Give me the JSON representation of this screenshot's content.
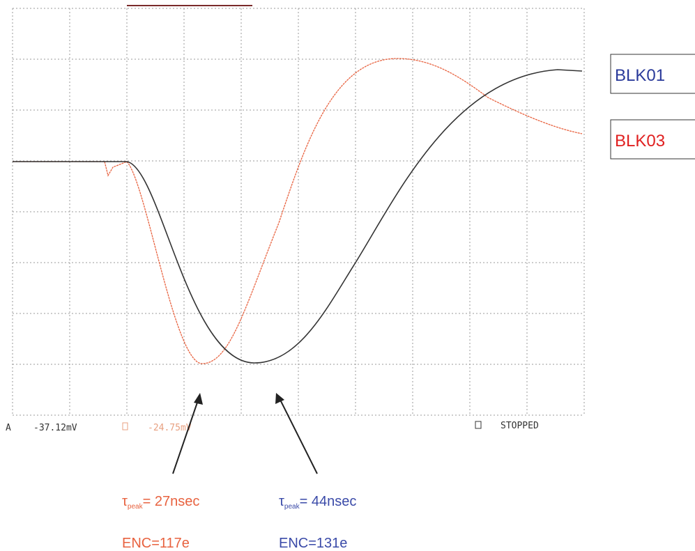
{
  "scope": {
    "status": {
      "channel_a": "A",
      "reading_a": "-37.12mV",
      "reading_b": "-24.75mV",
      "state": "STOPPED"
    },
    "legend": [
      "BLK01",
      "BLK03"
    ],
    "annotations": [
      {
        "symbol": "τ",
        "subscript": "peak",
        "text": "= 27nsec",
        "enc": "ENC=117e"
      },
      {
        "symbol": "τ",
        "subscript": "peak",
        "text": "= 44nsec",
        "enc": "ENC=131e"
      }
    ]
  }
}
